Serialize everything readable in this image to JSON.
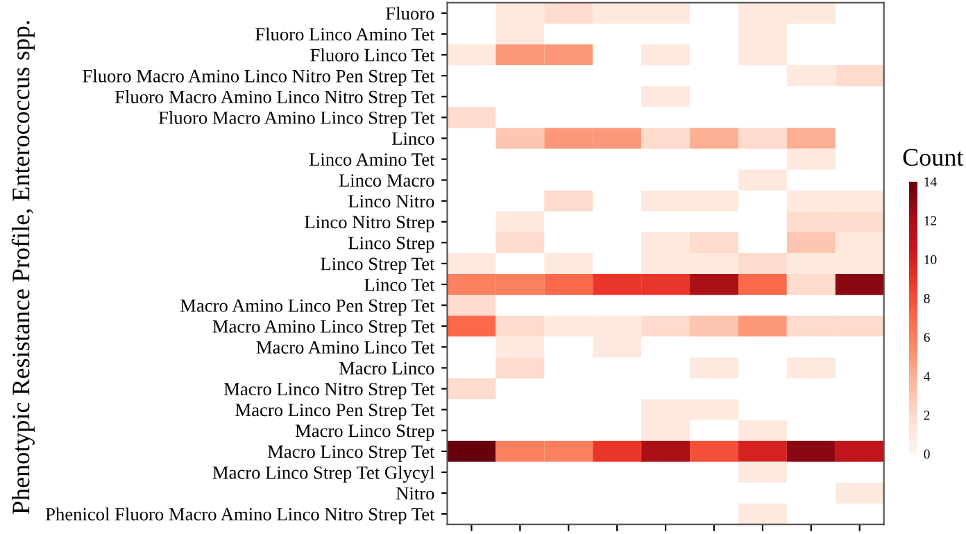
{
  "chart_data": {
    "type": "heatmap",
    "ylabel": "Phenotypic Resistance Profile, Enterococcus spp.",
    "clabel": "Count",
    "categories": [
      null,
      null,
      null,
      null,
      null,
      null,
      null,
      null,
      null
    ],
    "y_categories": [
      "Fluoro",
      "Fluoro Linco Amino Tet",
      "Fluoro Linco Tet",
      "Fluoro Macro Amino Linco Nitro Pen Strep Tet",
      "Fluoro Macro Amino Linco Nitro Strep Tet",
      "Fluoro Macro Amino Linco Strep Tet",
      "Linco",
      "Linco Amino Tet",
      "Linco Macro",
      "Linco Nitro",
      "Linco Nitro Strep",
      "Linco Strep",
      "Linco Strep Tet",
      "Linco Tet",
      "Macro Amino Linco Pen Strep Tet",
      "Macro Amino Linco Strep Tet",
      "Macro Amino Linco Tet",
      "Macro Linco",
      "Macro Linco Nitro Strep Tet",
      "Macro Linco Pen Strep Tet",
      "Macro Linco Strep",
      "Macro Linco Strep Tet",
      "Macro Linco Strep Tet Glycyl",
      "Nitro",
      "Phenicol Fluoro Macro Amino Linco Nitro Strep Tet"
    ],
    "cells": [
      [
        null,
        1,
        2,
        1,
        1,
        null,
        1,
        1,
        null
      ],
      [
        null,
        1,
        null,
        null,
        null,
        null,
        1,
        null,
        null
      ],
      [
        1,
        5,
        5,
        null,
        1,
        null,
        1,
        null,
        null
      ],
      [
        null,
        null,
        null,
        null,
        null,
        null,
        null,
        1,
        2
      ],
      [
        null,
        null,
        null,
        null,
        1,
        null,
        null,
        null,
        null
      ],
      [
        2,
        null,
        null,
        null,
        null,
        null,
        null,
        null,
        null
      ],
      [
        null,
        3,
        5,
        5,
        2,
        4,
        2,
        4,
        null
      ],
      [
        null,
        null,
        null,
        null,
        null,
        null,
        null,
        1,
        null
      ],
      [
        null,
        null,
        null,
        null,
        null,
        null,
        1,
        null,
        null
      ],
      [
        null,
        null,
        2,
        null,
        1,
        1,
        null,
        1,
        1
      ],
      [
        null,
        1,
        null,
        null,
        null,
        null,
        null,
        2,
        2
      ],
      [
        null,
        2,
        null,
        null,
        1,
        2,
        null,
        3,
        1
      ],
      [
        1,
        null,
        1,
        null,
        1,
        1,
        2,
        1,
        1
      ],
      [
        6,
        6,
        7,
        9,
        9,
        12,
        7,
        2,
        13
      ],
      [
        2,
        null,
        null,
        null,
        null,
        null,
        null,
        null,
        null
      ],
      [
        7,
        2,
        1,
        1,
        2,
        3,
        5,
        2,
        2
      ],
      [
        null,
        1,
        null,
        1,
        null,
        null,
        null,
        null,
        null
      ],
      [
        null,
        2,
        null,
        null,
        null,
        1,
        null,
        1,
        null
      ],
      [
        2,
        null,
        null,
        null,
        null,
        null,
        null,
        null,
        null
      ],
      [
        null,
        null,
        null,
        null,
        1,
        1,
        null,
        null,
        null
      ],
      [
        null,
        null,
        null,
        null,
        1,
        null,
        1,
        null,
        null
      ],
      [
        14,
        6,
        6,
        9,
        12,
        8,
        10,
        13,
        11
      ],
      [
        null,
        null,
        null,
        null,
        null,
        null,
        1,
        null,
        null
      ],
      [
        null,
        null,
        null,
        null,
        null,
        null,
        null,
        null,
        1
      ],
      [
        null,
        null,
        null,
        null,
        null,
        null,
        1,
        null,
        null
      ]
    ],
    "clim": [
      0,
      14
    ],
    "cticks": [
      0,
      2,
      4,
      6,
      8,
      10,
      12,
      14
    ],
    "tick_labels": "y"
  }
}
